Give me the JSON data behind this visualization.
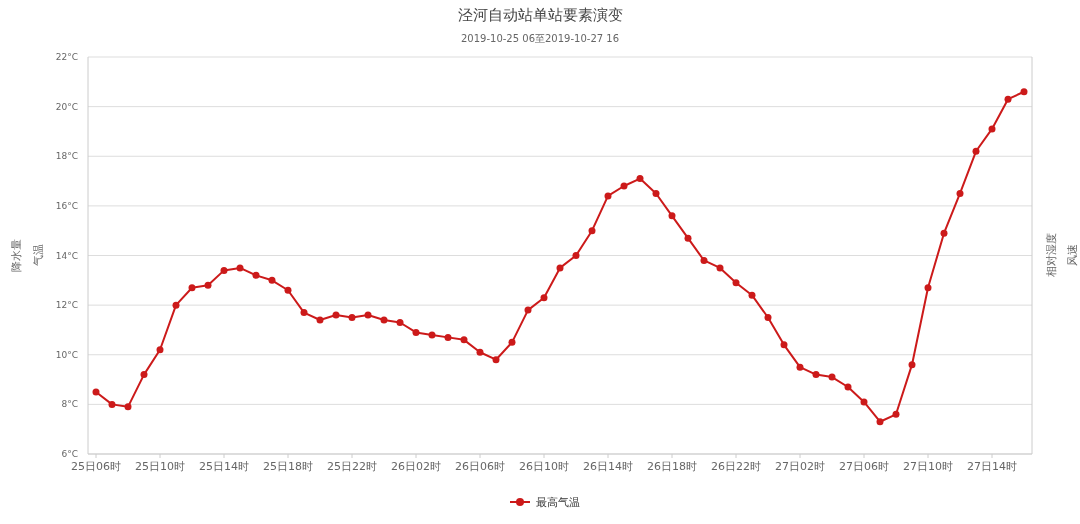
{
  "chart_data": {
    "type": "line",
    "title": "泾河自动站单站要素演变",
    "subtitle": "2019-10-25 06至2019-10-27 16",
    "ylabel": "气温",
    "y2label": "相对湿度",
    "annotations": [
      "降水量",
      "风速"
    ],
    "categories": [
      "25日06时",
      null,
      null,
      null,
      "25日10时",
      null,
      null,
      null,
      "25日14时",
      null,
      null,
      null,
      "25日18时",
      null,
      null,
      null,
      "25日22时",
      null,
      null,
      null,
      "26日02时",
      null,
      null,
      null,
      "26日06时",
      null,
      null,
      null,
      "26日10时",
      null,
      null,
      null,
      "26日14时",
      null,
      null,
      null,
      "26日18时",
      null,
      null,
      null,
      "26日22时",
      null,
      null,
      null,
      "27日02时",
      null,
      null,
      null,
      "27日06时",
      null,
      null,
      null,
      "27日10时",
      null,
      null,
      null,
      "27日14时",
      null,
      null
    ],
    "series": [
      {
        "name": "最高气温",
        "color": "#cc1a1a",
        "values": [
          8.5,
          8.0,
          7.9,
          9.2,
          10.2,
          12.0,
          12.7,
          12.8,
          13.4,
          13.5,
          13.2,
          13.0,
          12.6,
          11.7,
          11.4,
          11.6,
          11.5,
          11.6,
          11.4,
          11.3,
          10.9,
          10.8,
          10.7,
          10.6,
          10.1,
          9.8,
          10.5,
          11.8,
          12.3,
          13.5,
          14.0,
          15.0,
          16.4,
          16.8,
          17.1,
          16.5,
          15.6,
          14.7,
          13.8,
          13.5,
          12.9,
          12.4,
          11.5,
          10.4,
          9.5,
          9.2,
          9.1,
          8.7,
          8.1,
          7.3,
          7.6,
          9.6,
          12.7,
          14.9,
          16.5,
          18.2,
          19.1,
          20.3,
          20.6
        ]
      }
    ],
    "ylim": [
      6,
      22
    ],
    "yticks": [
      {
        "value": 6,
        "label": "6°C"
      },
      {
        "value": 8,
        "label": "8°C"
      },
      {
        "value": 10,
        "label": "10°C"
      },
      {
        "value": 12,
        "label": "12°C"
      },
      {
        "value": 14,
        "label": "14°C"
      },
      {
        "value": 16,
        "label": "16°C"
      },
      {
        "value": 18,
        "label": "18°C"
      },
      {
        "value": 20,
        "label": "20°C"
      },
      {
        "value": 22,
        "label": "22°C"
      }
    ],
    "grid": "y",
    "legend": "bottom",
    "marker": "circle",
    "line_style": "solid"
  }
}
